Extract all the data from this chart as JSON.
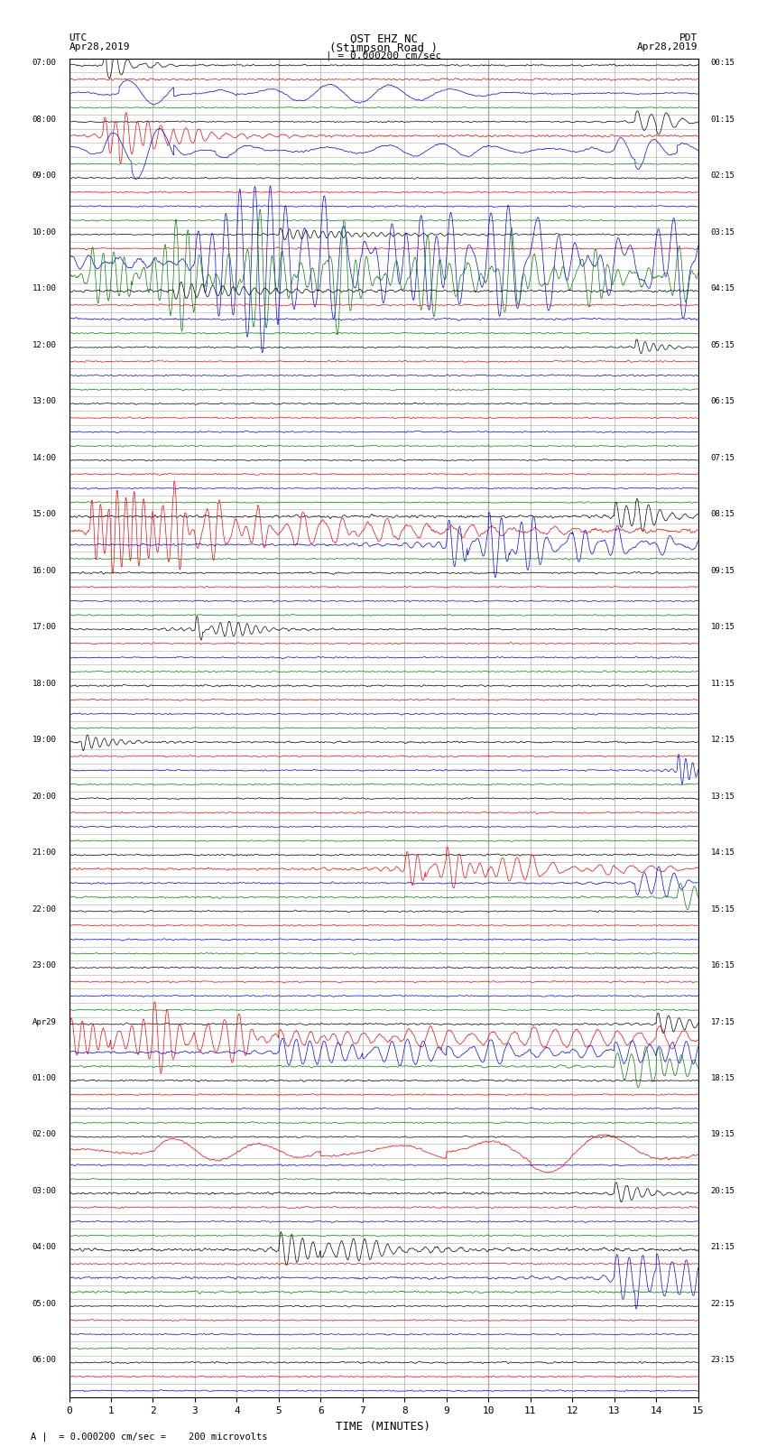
{
  "title_line1": "OST EHZ NC",
  "title_line2": "(Stimpson Road )",
  "title_line3": "| = 0.000200 cm/sec",
  "label_left_top": "UTC",
  "label_left_date": "Apr28,2019",
  "label_right_top": "PDT",
  "label_right_date": "Apr28,2019",
  "xlabel": "TIME (MINUTES)",
  "footer": "A |  = 0.000200 cm/sec =    200 microvolts",
  "bg_color": "#ffffff",
  "grid_color": "#aaaaaa",
  "colors_cycle": [
    "black",
    "red",
    "blue",
    "green"
  ],
  "n_total_rows": 95,
  "noise_base": 0.12,
  "amplitude_scale": 0.42,
  "fig_width": 8.5,
  "fig_height": 16.13,
  "dpi": 100
}
